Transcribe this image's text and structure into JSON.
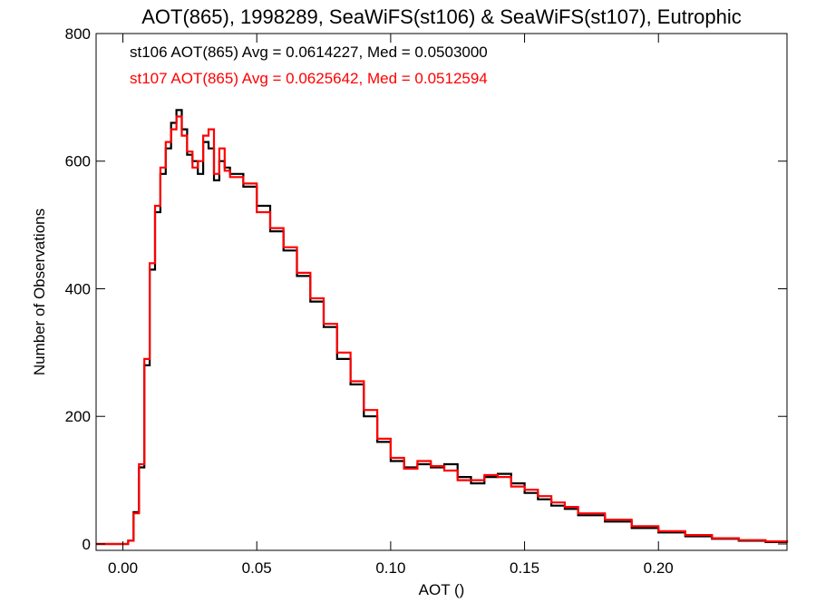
{
  "chart_data": {
    "type": "line",
    "title": "AOT(865), 1998289, SeaWiFS(st106) & SeaWiFS(st107), Eutrophic",
    "xlabel": "AOT ()",
    "ylabel": "Number of Observations",
    "xlim": [
      -0.01,
      0.248
    ],
    "ylim": [
      -10,
      800
    ],
    "x_ticks": [
      0.0,
      0.05,
      0.1,
      0.15,
      0.2
    ],
    "x_tick_labels": [
      "0.00",
      "0.05",
      "0.10",
      "0.15",
      "0.20"
    ],
    "y_ticks": [
      0,
      200,
      400,
      600,
      800
    ],
    "y_tick_labels": [
      "0",
      "200",
      "400",
      "600",
      "800"
    ],
    "grid": false,
    "legend_position": "top-left",
    "step": true,
    "x": [
      -0.01,
      0.002,
      0.004,
      0.006,
      0.008,
      0.01,
      0.012,
      0.014,
      0.016,
      0.018,
      0.02,
      0.022,
      0.024,
      0.026,
      0.028,
      0.03,
      0.032,
      0.034,
      0.036,
      0.038,
      0.04,
      0.045,
      0.05,
      0.055,
      0.06,
      0.065,
      0.07,
      0.075,
      0.08,
      0.085,
      0.09,
      0.095,
      0.1,
      0.105,
      0.11,
      0.115,
      0.12,
      0.125,
      0.13,
      0.135,
      0.14,
      0.145,
      0.15,
      0.155,
      0.16,
      0.165,
      0.17,
      0.18,
      0.19,
      0.2,
      0.21,
      0.22,
      0.23,
      0.24,
      0.248
    ],
    "series": [
      {
        "name": "st106",
        "color": "#000000",
        "values": [
          0,
          5,
          50,
          120,
          280,
          430,
          520,
          580,
          620,
          660,
          680,
          650,
          610,
          600,
          580,
          630,
          620,
          570,
          600,
          590,
          580,
          560,
          530,
          490,
          460,
          420,
          380,
          340,
          290,
          250,
          200,
          160,
          130,
          120,
          125,
          120,
          125,
          105,
          95,
          105,
          110,
          95,
          80,
          70,
          60,
          55,
          45,
          35,
          25,
          18,
          12,
          8,
          5,
          3,
          2
        ]
      },
      {
        "name": "st107",
        "color": "#ff0000",
        "values": [
          0,
          5,
          48,
          125,
          290,
          440,
          530,
          590,
          630,
          650,
          670,
          640,
          615,
          590,
          600,
          640,
          650,
          580,
          620,
          585,
          575,
          565,
          520,
          495,
          465,
          425,
          385,
          345,
          300,
          255,
          210,
          165,
          135,
          118,
          130,
          122,
          115,
          100,
          100,
          108,
          105,
          90,
          85,
          75,
          65,
          58,
          48,
          38,
          28,
          20,
          14,
          9,
          6,
          4,
          2
        ]
      }
    ],
    "annotations": [
      {
        "text": "st106 AOT(865) Avg = 0.0614227, Med = 0.0503000",
        "color": "#000000"
      },
      {
        "text": "st107 AOT(865) Avg = 0.0625642, Med = 0.0512594",
        "color": "#ff0000"
      }
    ]
  }
}
